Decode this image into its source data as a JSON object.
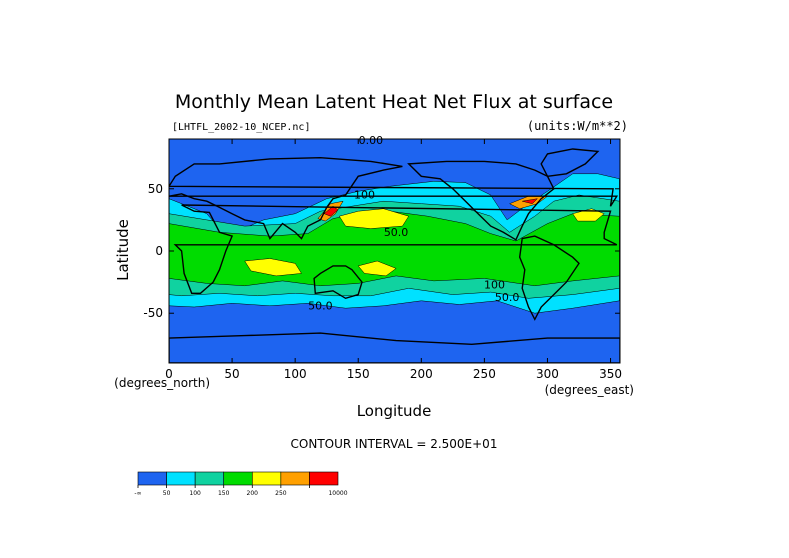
{
  "chart_data": {
    "type": "heatmap",
    "title": "Monthly Mean Latent Heat Net Flux at surface",
    "source_label": "[LHTFL_2002-10_NCEP.nc]",
    "units_label": "(units:W/m**2)",
    "xlabel": "Longitude",
    "ylabel": "Latitude",
    "x_unit_note": "(degrees_east)",
    "y_unit_note": "(degrees_north)",
    "xlim": [
      0,
      357.5
    ],
    "ylim": [
      -90,
      90
    ],
    "x_ticks": [
      0,
      50,
      100,
      150,
      200,
      250,
      300,
      350
    ],
    "y_ticks": [
      50,
      0,
      -50
    ],
    "contour_interval_text": "CONTOUR INTERVAL = 2.500E+01",
    "contour_labels": [
      {
        "text": "0.00",
        "lon": 160,
        "lat": 86
      },
      {
        "text": "100",
        "lon": 155,
        "lat": 42
      },
      {
        "text": "50.0",
        "lon": 180,
        "lat": 12
      },
      {
        "text": "100",
        "lon": 258,
        "lat": -30
      },
      {
        "text": "50.0",
        "lon": 268,
        "lat": -40
      },
      {
        "text": "50.0",
        "lon": 120,
        "lat": -47
      }
    ],
    "color_legend": {
      "bins": [
        {
          "label": "-∞",
          "color": "#1e64f0"
        },
        {
          "label": "50",
          "color": "#00e1ff"
        },
        {
          "label": "100",
          "color": "#10d2a0"
        },
        {
          "label": "150",
          "color": "#00dc00"
        },
        {
          "label": "200",
          "color": "#ffff00"
        },
        {
          "label": "250",
          "color": "#ffa000"
        },
        {
          "label": "10000",
          "color": "#ff0000"
        }
      ],
      "tick_labels": [
        "-∞",
        "50",
        "100",
        "150",
        "200",
        "250",
        "10000"
      ]
    }
  }
}
